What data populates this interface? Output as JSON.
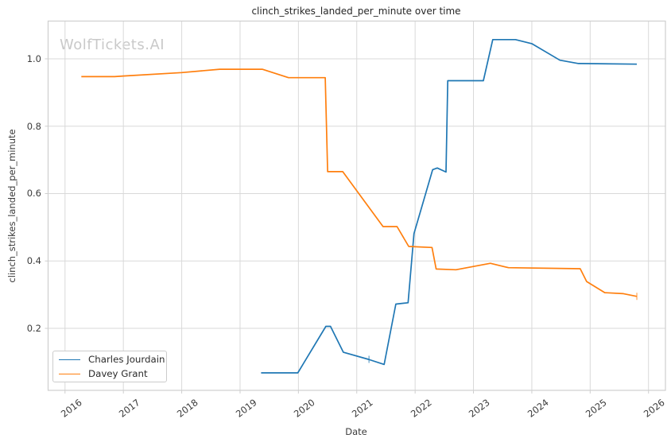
{
  "watermark": "WolfTickets.AI",
  "chart_data": {
    "type": "line",
    "title": "clinch_strikes_landed_per_minute over time",
    "xlabel": "Date",
    "ylabel": "clinch_strikes_landed_per_minute",
    "xlim": [
      2015.71,
      2026.29
    ],
    "ylim": [
      0.016,
      1.112
    ],
    "xticks": [
      2016,
      2017,
      2018,
      2019,
      2020,
      2021,
      2022,
      2023,
      2024,
      2025,
      2026
    ],
    "yticks": [
      0.2,
      0.4,
      0.6,
      0.8,
      1.0
    ],
    "grid": true,
    "grid_color": "#d9d9d9",
    "spine_color": "#cfcfcf",
    "legend_position": "lower left",
    "series": [
      {
        "name": "Charles Jourdain",
        "color": "#1f77b4",
        "points": [
          [
            2019.36,
            0.068
          ],
          [
            2019.99,
            0.068
          ],
          [
            2020.47,
            0.206
          ],
          [
            2020.55,
            0.206
          ],
          [
            2020.77,
            0.129
          ],
          [
            2021.2,
            0.108
          ],
          [
            2021.47,
            0.093
          ],
          [
            2021.67,
            0.272
          ],
          [
            2021.88,
            0.276
          ],
          [
            2021.98,
            0.481
          ],
          [
            2022.3,
            0.671
          ],
          [
            2022.38,
            0.676
          ],
          [
            2022.53,
            0.664
          ],
          [
            2022.56,
            0.935
          ],
          [
            2023.17,
            0.935
          ],
          [
            2023.33,
            1.057
          ],
          [
            2023.72,
            1.057
          ],
          [
            2024.0,
            1.045
          ],
          [
            2024.48,
            0.996
          ],
          [
            2024.8,
            0.986
          ],
          [
            2025.8,
            0.984
          ]
        ]
      },
      {
        "name": "Davey Grant",
        "color": "#ff7f0e",
        "points": [
          [
            2016.28,
            0.947
          ],
          [
            2016.85,
            0.947
          ],
          [
            2017.0,
            0.949
          ],
          [
            2018.0,
            0.959
          ],
          [
            2018.65,
            0.969
          ],
          [
            2019.38,
            0.969
          ],
          [
            2019.83,
            0.944
          ],
          [
            2020.46,
            0.944
          ],
          [
            2020.5,
            0.665
          ],
          [
            2020.76,
            0.665
          ],
          [
            2021.45,
            0.502
          ],
          [
            2021.69,
            0.502
          ],
          [
            2021.89,
            0.443
          ],
          [
            2022.29,
            0.44
          ],
          [
            2022.36,
            0.376
          ],
          [
            2022.7,
            0.374
          ],
          [
            2023.29,
            0.393
          ],
          [
            2023.6,
            0.38
          ],
          [
            2024.83,
            0.377
          ],
          [
            2024.94,
            0.339
          ],
          [
            2025.25,
            0.306
          ],
          [
            2025.57,
            0.303
          ],
          [
            2025.8,
            0.295
          ]
        ]
      }
    ],
    "point_tick_markers": [
      {
        "series_index": 0,
        "x": 2021.21,
        "y": 0.108
      },
      {
        "series_index": 1,
        "x": 2025.8,
        "y": 0.295
      }
    ]
  }
}
